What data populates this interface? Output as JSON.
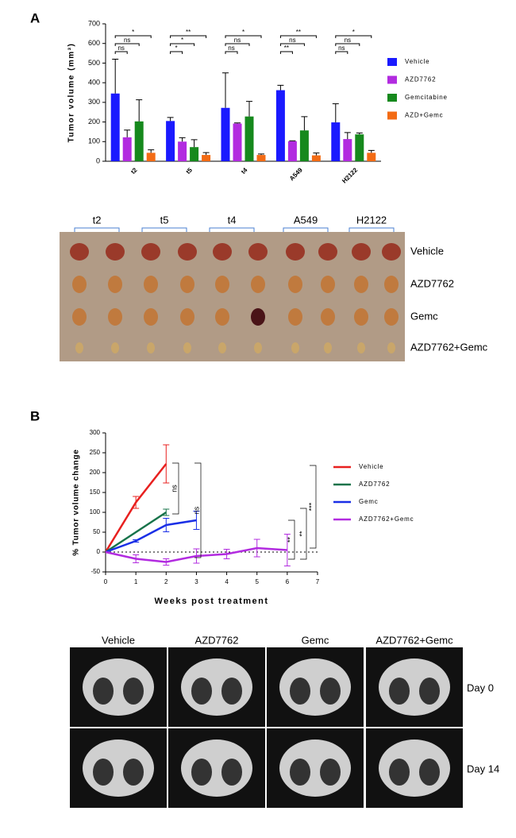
{
  "panel_labels": [
    "A",
    "B"
  ],
  "chart_data": [
    {
      "type": "bar",
      "y_label": "Tumor volume (mm³)",
      "categories": [
        "t2",
        "t5",
        "t4",
        "A549",
        "H2122"
      ],
      "series": [
        {
          "name": "Vehicle",
          "color": "#1a1aff",
          "values": [
            345,
            205,
            272,
            362,
            198
          ],
          "errors": [
            175,
            18,
            178,
            25,
            95
          ]
        },
        {
          "name": "AZD7762",
          "color": "#b22be0",
          "values": [
            122,
            100,
            192,
            102,
            113
          ],
          "errors": [
            37,
            20,
            3,
            2,
            33
          ]
        },
        {
          "name": "Gemcitabine",
          "color": "#16891d",
          "values": [
            203,
            72,
            228,
            157,
            137
          ],
          "errors": [
            110,
            38,
            77,
            70,
            7
          ]
        },
        {
          "name": "AZD+Gemc",
          "color": "#f36b14",
          "values": [
            43,
            32,
            32,
            30,
            43
          ],
          "errors": [
            15,
            12,
            5,
            12,
            12
          ]
        }
      ],
      "significance": [
        [
          "ns",
          "ns",
          "*"
        ],
        [
          "*",
          "*",
          "**"
        ],
        [
          "ns",
          "ns",
          "*"
        ],
        [
          "**",
          "ns",
          "**"
        ],
        [
          "ns",
          "ns",
          "*"
        ]
      ],
      "ylim": [
        0,
        700
      ],
      "yticks": [
        0,
        100,
        200,
        300,
        400,
        500,
        600,
        700
      ]
    },
    {
      "type": "line",
      "x_label": "Weeks post treatment",
      "y_label": "% Tumor volume change",
      "x": [
        0,
        1,
        2,
        3,
        4,
        5,
        6
      ],
      "series": [
        {
          "name": "Vehicle",
          "color": "#e8201f",
          "values": [
            0,
            125,
            222,
            null,
            null,
            null,
            null
          ],
          "errors": [
            0,
            15,
            48,
            null,
            null,
            null,
            null
          ]
        },
        {
          "name": "AZD7762",
          "color": "#17734a",
          "values": [
            0,
            50,
            100,
            null,
            null,
            null,
            null
          ],
          "errors": [
            0,
            null,
            8,
            null,
            null,
            null,
            null
          ]
        },
        {
          "name": "Gemc",
          "color": "#1a2fe6",
          "values": [
            0,
            28,
            68,
            80,
            null,
            null,
            null
          ],
          "errors": [
            0,
            3,
            17,
            23,
            null,
            null,
            null
          ]
        },
        {
          "name": "AZD7762+Gemc",
          "color": "#b22be0",
          "values": [
            0,
            -17,
            -25,
            -10,
            -5,
            10,
            5
          ],
          "errors": [
            0,
            10,
            8,
            18,
            12,
            22,
            40
          ]
        }
      ],
      "significance": [
        "ns",
        "ns",
        "**",
        "**",
        "***"
      ],
      "xlim": [
        0,
        7
      ],
      "xticks": [
        0,
        1,
        2,
        3,
        4,
        5,
        6,
        7
      ],
      "ylim": [
        -50,
        300
      ],
      "yticks": [
        -50,
        0,
        50,
        100,
        150,
        200,
        250,
        300
      ]
    }
  ],
  "photo_a": {
    "groups": [
      "t2",
      "t5",
      "t4",
      "A549",
      "H2122"
    ],
    "rows": [
      "Vehicle",
      "AZD7762",
      "Gemc",
      "AZD7762+Gemc"
    ]
  },
  "photo_b": {
    "columns": [
      "Vehicle",
      "AZD7762",
      "Gemc",
      "AZD7762+Gemc"
    ],
    "rows": [
      "Day 0",
      "Day 14"
    ]
  }
}
